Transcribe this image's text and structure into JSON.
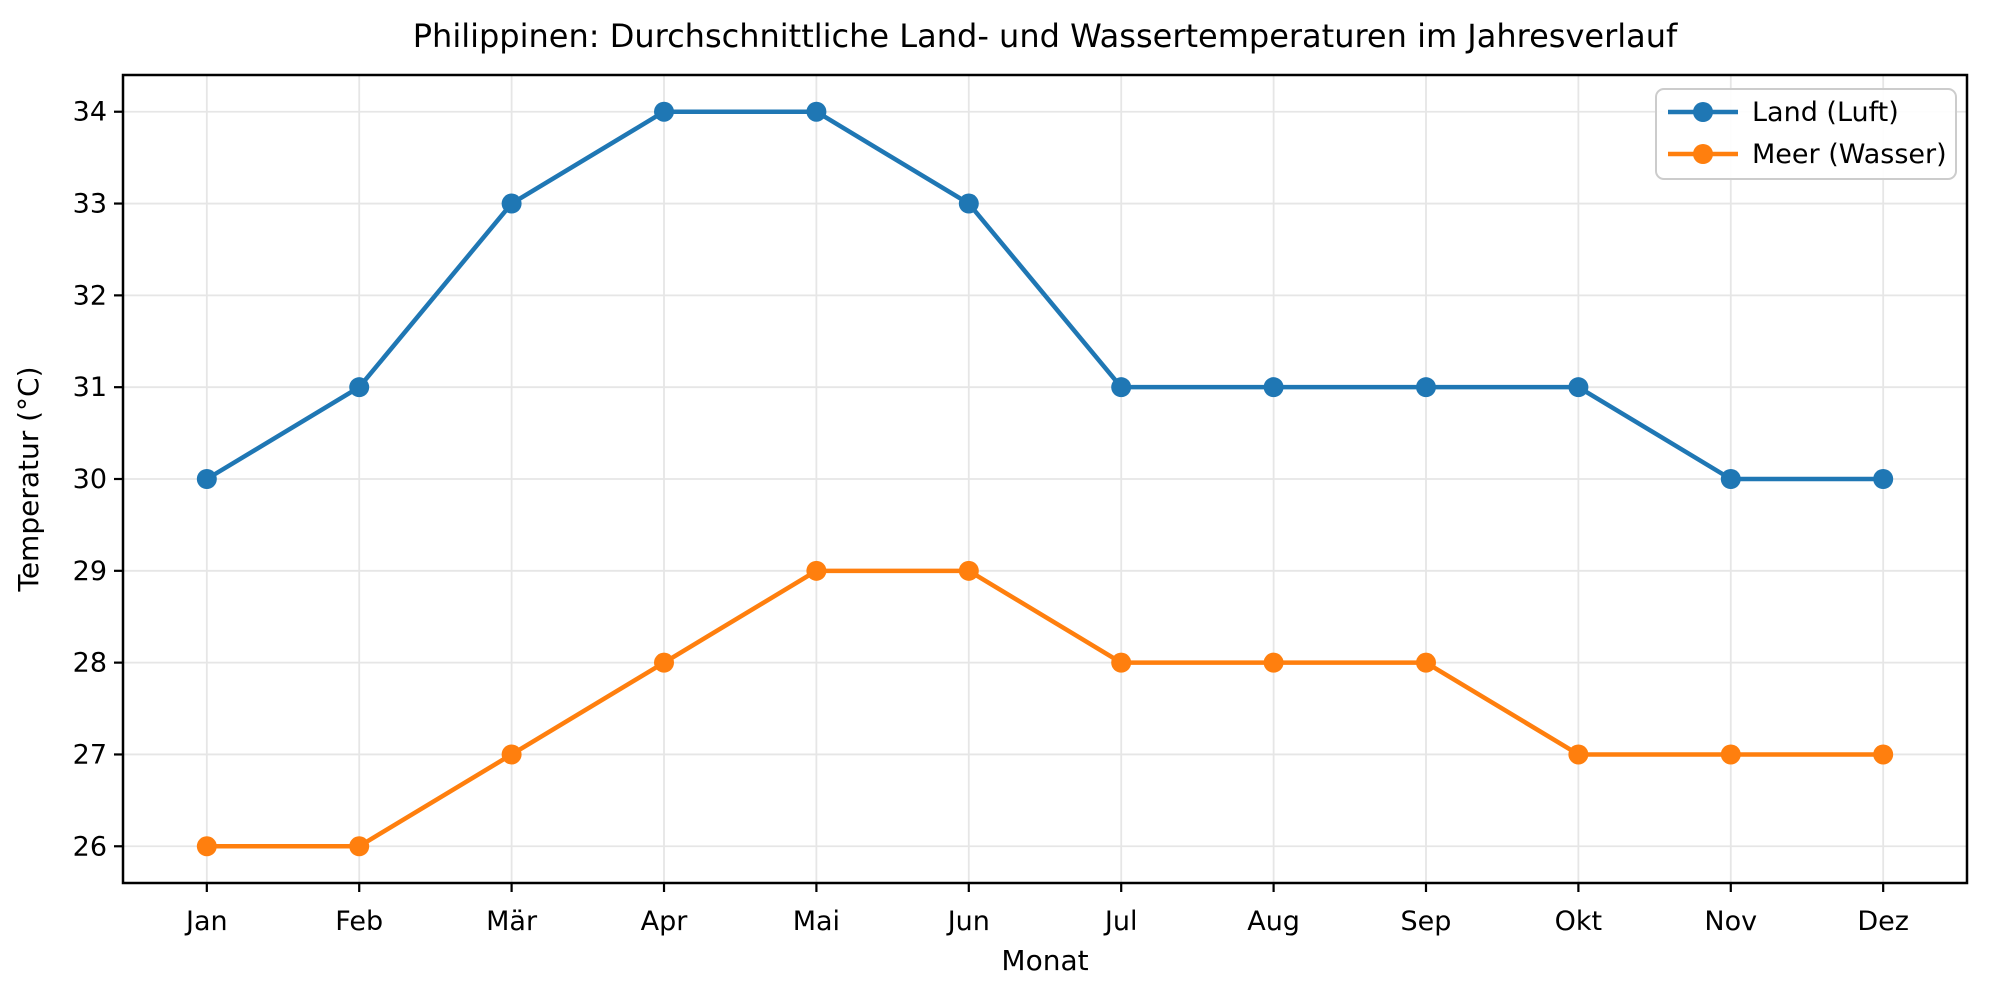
{
  "figure": {
    "background": "#ffffff",
    "grid_color": "#e6e6e6",
    "axis_color": "#000000",
    "legend_border_color": "#cccccc",
    "legend_background": "#ffffff"
  },
  "chart_data": {
    "type": "line",
    "title": "Philippinen: Durchschnittliche Land- und Wassertemperaturen im Jahresverlauf",
    "xlabel": "Monat",
    "ylabel": "Temperatur (°C)",
    "categories": [
      "Jan",
      "Feb",
      "Mär",
      "Apr",
      "Mai",
      "Jun",
      "Jul",
      "Aug",
      "Sep",
      "Okt",
      "Nov",
      "Dez"
    ],
    "series": [
      {
        "name": "Land (Luft)",
        "color": "#1f77b4",
        "values": [
          30,
          31,
          33,
          34,
          34,
          33,
          31,
          31,
          31,
          31,
          30,
          30
        ]
      },
      {
        "name": "Meer (Wasser)",
        "color": "#ff7f0e",
        "values": [
          26,
          26,
          27,
          28,
          29,
          29,
          28,
          28,
          28,
          27,
          27,
          27
        ]
      }
    ],
    "yticks": [
      26,
      27,
      28,
      29,
      30,
      31,
      32,
      33,
      34
    ],
    "ylim": [
      25.6,
      34.4
    ],
    "grid": true,
    "legend_position": "top-right",
    "marker": "circle"
  }
}
